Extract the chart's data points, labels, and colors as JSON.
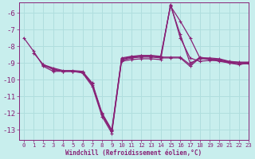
{
  "bg_color": "#c8eeed",
  "grid_color": "#b0dede",
  "line_color": "#882277",
  "xlabel": "Windchill (Refroidissement éolien,°C)",
  "xlim": [
    -0.5,
    23
  ],
  "ylim": [
    -13.6,
    -5.4
  ],
  "yticks": [
    -6,
    -7,
    -8,
    -9,
    -10,
    -11,
    -12,
    -13
  ],
  "xticks": [
    0,
    1,
    2,
    3,
    4,
    5,
    6,
    7,
    8,
    9,
    10,
    11,
    12,
    13,
    14,
    15,
    16,
    17,
    18,
    19,
    20,
    21,
    22,
    23
  ],
  "series": [
    [
      -7.5,
      -8.3,
      -9.2,
      -9.5,
      -9.5,
      -9.5,
      -9.6,
      -10.4,
      -12.2,
      -13.2,
      -8.85,
      -8.7,
      -8.65,
      -8.65,
      -8.7,
      -8.7,
      -8.7,
      -9.2,
      -8.7,
      -8.8,
      -8.9,
      -9.0,
      -9.05,
      -9.05
    ],
    [
      null,
      -8.4,
      -9.1,
      -9.4,
      -9.5,
      -9.5,
      -9.55,
      -10.3,
      -12.1,
      -13.1,
      -8.8,
      -8.65,
      -8.6,
      -8.6,
      -8.65,
      -8.65,
      -8.65,
      -9.1,
      -8.65,
      -8.75,
      -8.85,
      -8.95,
      -9.0,
      -9.0
    ],
    [
      null,
      null,
      -9.1,
      -9.3,
      -9.45,
      -9.45,
      -9.5,
      -10.2,
      -12.0,
      -13.0,
      -8.7,
      -8.6,
      -8.55,
      -8.55,
      -8.6,
      -5.6,
      -6.5,
      -7.5,
      -8.7,
      -8.7,
      -8.75,
      -8.9,
      -8.95,
      -8.95
    ],
    [
      null,
      null,
      -9.15,
      -9.35,
      -9.5,
      -9.5,
      -9.55,
      -10.25,
      -12.05,
      -13.05,
      -8.75,
      -8.62,
      -8.57,
      -8.57,
      -8.62,
      -5.55,
      -7.3,
      -9.0,
      -8.75,
      -8.75,
      -8.8,
      -8.92,
      -8.97,
      -8.97
    ],
    [
      null,
      null,
      null,
      null,
      null,
      null,
      null,
      null,
      null,
      null,
      -8.9,
      -8.8,
      -8.75,
      -8.75,
      -8.8,
      -5.5,
      -7.5,
      -8.7,
      -8.9,
      -8.85,
      -8.85,
      -9.0,
      -9.1,
      -9.0
    ]
  ]
}
